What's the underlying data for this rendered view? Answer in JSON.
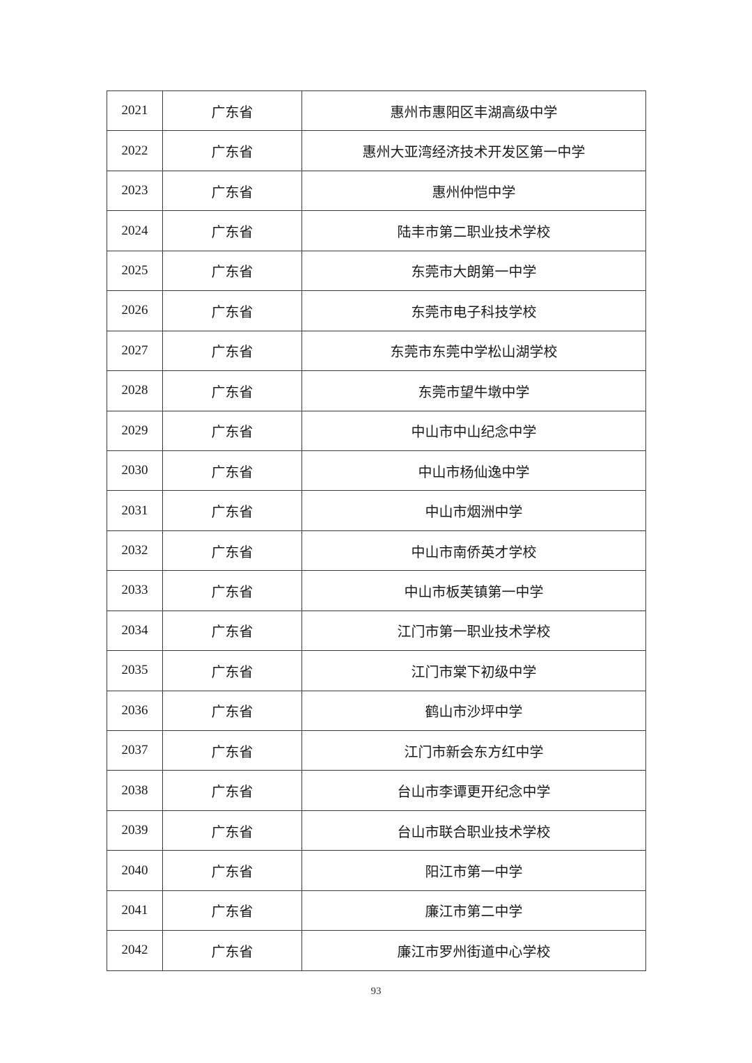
{
  "table": {
    "rows": [
      {
        "no": "2021",
        "province": "广东省",
        "school": "惠州市惠阳区丰湖高级中学"
      },
      {
        "no": "2022",
        "province": "广东省",
        "school": "惠州大亚湾经济技术开发区第一中学"
      },
      {
        "no": "2023",
        "province": "广东省",
        "school": "惠州仲恺中学"
      },
      {
        "no": "2024",
        "province": "广东省",
        "school": "陆丰市第二职业技术学校"
      },
      {
        "no": "2025",
        "province": "广东省",
        "school": "东莞市大朗第一中学"
      },
      {
        "no": "2026",
        "province": "广东省",
        "school": "东莞市电子科技学校"
      },
      {
        "no": "2027",
        "province": "广东省",
        "school": "东莞市东莞中学松山湖学校"
      },
      {
        "no": "2028",
        "province": "广东省",
        "school": "东莞市望牛墩中学"
      },
      {
        "no": "2029",
        "province": "广东省",
        "school": "中山市中山纪念中学"
      },
      {
        "no": "2030",
        "province": "广东省",
        "school": "中山市杨仙逸中学"
      },
      {
        "no": "2031",
        "province": "广东省",
        "school": "中山市烟洲中学"
      },
      {
        "no": "2032",
        "province": "广东省",
        "school": "中山市南侨英才学校"
      },
      {
        "no": "2033",
        "province": "广东省",
        "school": "中山市板芙镇第一中学"
      },
      {
        "no": "2034",
        "province": "广东省",
        "school": "江门市第一职业技术学校"
      },
      {
        "no": "2035",
        "province": "广东省",
        "school": "江门市棠下初级中学"
      },
      {
        "no": "2036",
        "province": "广东省",
        "school": "鹤山市沙坪中学"
      },
      {
        "no": "2037",
        "province": "广东省",
        "school": "江门市新会东方红中学"
      },
      {
        "no": "2038",
        "province": "广东省",
        "school": "台山市李谭更开纪念中学"
      },
      {
        "no": "2039",
        "province": "广东省",
        "school": "台山市联合职业技术学校"
      },
      {
        "no": "2040",
        "province": "广东省",
        "school": "阳江市第一中学"
      },
      {
        "no": "2041",
        "province": "广东省",
        "school": "廉江市第二中学"
      },
      {
        "no": "2042",
        "province": "广东省",
        "school": "廉江市罗州街道中心学校"
      }
    ]
  },
  "footer": {
    "page_number": "93"
  }
}
